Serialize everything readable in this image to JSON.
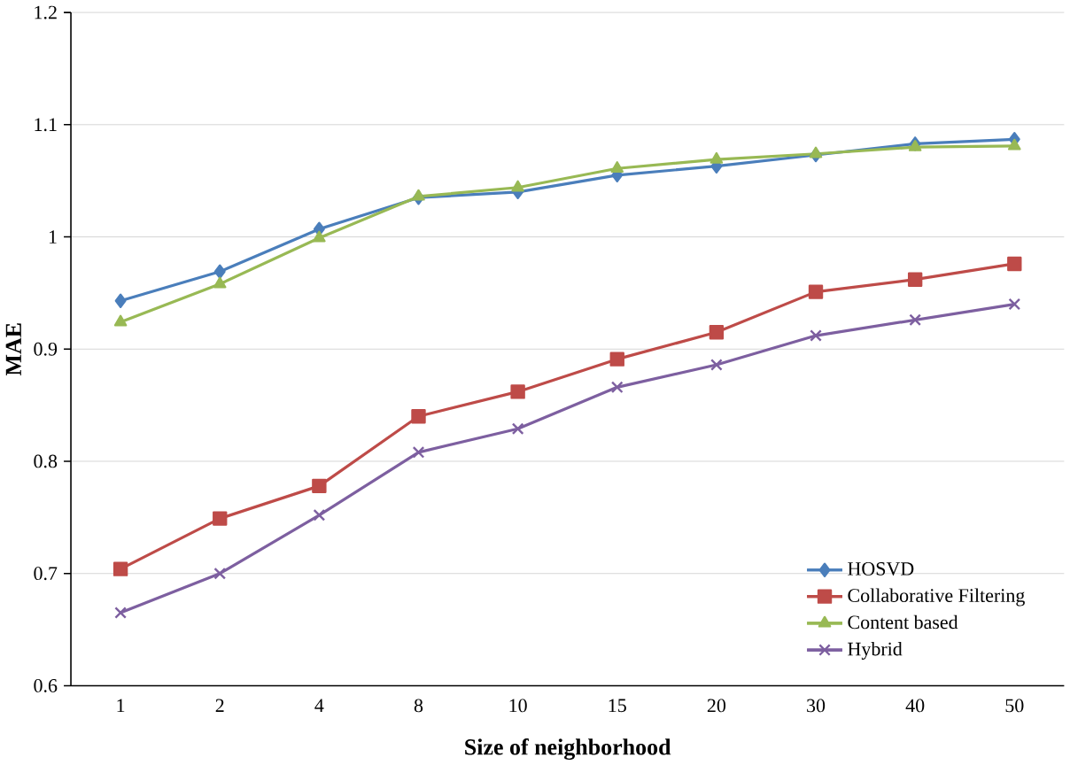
{
  "chart_data": {
    "type": "line",
    "xlabel": "Size of neighborhood",
    "ylabel": "MAE",
    "categories": [
      "1",
      "2",
      "4",
      "8",
      "10",
      "15",
      "20",
      "30",
      "40",
      "50"
    ],
    "series": [
      {
        "name": "HOSVD",
        "color": "#4a7ebb",
        "marker": "diamond",
        "values": [
          0.943,
          0.969,
          1.007,
          1.035,
          1.04,
          1.055,
          1.063,
          1.073,
          1.083,
          1.087
        ]
      },
      {
        "name": "Collaborative Filtering",
        "color": "#be4b48",
        "marker": "square",
        "values": [
          0.704,
          0.749,
          0.778,
          0.84,
          0.862,
          0.891,
          0.915,
          0.951,
          0.962,
          0.976
        ]
      },
      {
        "name": "Content based",
        "color": "#98b954",
        "marker": "triangle",
        "values": [
          0.924,
          0.958,
          0.999,
          1.036,
          1.044,
          1.061,
          1.069,
          1.074,
          1.08,
          1.081
        ]
      },
      {
        "name": "Hybrid",
        "color": "#7d5fa0",
        "marker": "cross",
        "values": [
          0.665,
          0.7,
          0.752,
          0.808,
          0.829,
          0.866,
          0.886,
          0.912,
          0.926,
          0.94
        ]
      }
    ],
    "ylim": [
      0.6,
      1.2
    ],
    "yticks": [
      0.6,
      0.7,
      0.8,
      0.9,
      1,
      1.1,
      1.2
    ],
    "grid": "y",
    "legend": "bottom right"
  }
}
